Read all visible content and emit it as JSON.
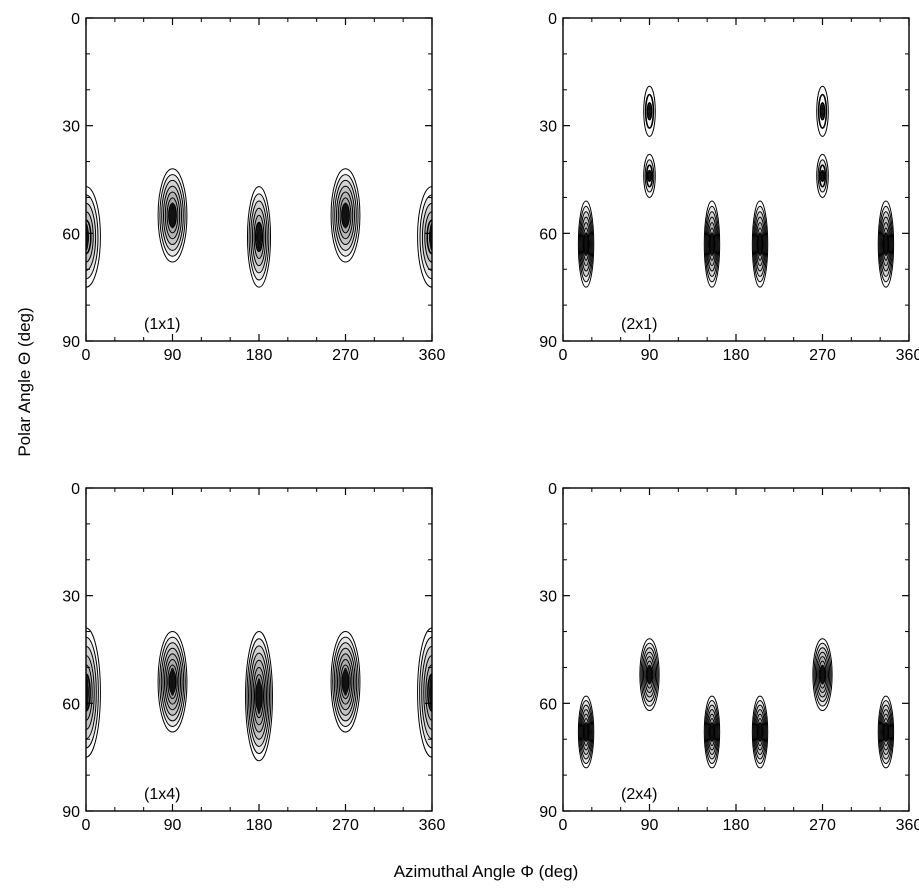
{
  "figure": {
    "ylabel": "Polar Angle Θ (deg)",
    "xlabel": "Azimuthal Angle Φ (deg)"
  },
  "chart_data": [
    {
      "type": "heatmap",
      "panel_label": "(1x1)",
      "xlim": [
        0,
        360
      ],
      "ylim": [
        0,
        90
      ],
      "y_inverted": true,
      "x_ticks": [
        0,
        90,
        180,
        270,
        360
      ],
      "y_ticks": [
        0,
        30,
        60,
        90
      ],
      "peaks": [
        {
          "phi": 0,
          "theta": 61,
          "rx": 15,
          "rth": 14,
          "levels": 6
        },
        {
          "phi": 90,
          "theta": 55,
          "rx": 15,
          "rth": 13,
          "levels": 8
        },
        {
          "phi": 180,
          "theta": 61,
          "rx": 12,
          "rth": 14,
          "levels": 7
        },
        {
          "phi": 270,
          "theta": 55,
          "rx": 15,
          "rth": 13,
          "levels": 8
        },
        {
          "phi": 360,
          "theta": 61,
          "rx": 15,
          "rth": 14,
          "levels": 6
        }
      ]
    },
    {
      "type": "heatmap",
      "panel_label": "(2x1)",
      "xlim": [
        0,
        360
      ],
      "ylim": [
        0,
        90
      ],
      "y_inverted": true,
      "x_ticks": [
        0,
        90,
        180,
        270,
        360
      ],
      "y_ticks": [
        0,
        30,
        60,
        90
      ],
      "peaks": [
        {
          "phi": 24,
          "theta": 63,
          "rx": 8,
          "rth": 12,
          "levels": 8
        },
        {
          "phi": 155,
          "theta": 63,
          "rx": 8,
          "rth": 12,
          "levels": 8
        },
        {
          "phi": 205,
          "theta": 63,
          "rx": 8,
          "rth": 12,
          "levels": 8
        },
        {
          "phi": 336,
          "theta": 63,
          "rx": 8,
          "rth": 12,
          "levels": 8
        },
        {
          "phi": 90,
          "theta": 44,
          "rx": 6,
          "rth": 6,
          "levels": 4
        },
        {
          "phi": 270,
          "theta": 44,
          "rx": 6,
          "rth": 6,
          "levels": 4
        },
        {
          "phi": 90,
          "theta": 26,
          "rx": 6,
          "rth": 7,
          "levels": 3
        },
        {
          "phi": 270,
          "theta": 26,
          "rx": 6,
          "rth": 7,
          "levels": 3
        }
      ]
    },
    {
      "type": "heatmap",
      "panel_label": "(1x4)",
      "xlim": [
        0,
        360
      ],
      "ylim": [
        0,
        90
      ],
      "y_inverted": true,
      "x_ticks": [
        0,
        90,
        180,
        270,
        360
      ],
      "y_ticks": [
        0,
        30,
        60,
        90
      ],
      "peaks": [
        {
          "phi": 0,
          "theta": 57,
          "rx": 15,
          "rth": 18,
          "levels": 7
        },
        {
          "phi": 90,
          "theta": 54,
          "rx": 15,
          "rth": 14,
          "levels": 9
        },
        {
          "phi": 180,
          "theta": 58,
          "rx": 14,
          "rth": 18,
          "levels": 9
        },
        {
          "phi": 270,
          "theta": 54,
          "rx": 15,
          "rth": 14,
          "levels": 9
        },
        {
          "phi": 360,
          "theta": 57,
          "rx": 15,
          "rth": 18,
          "levels": 7
        }
      ]
    },
    {
      "type": "heatmap",
      "panel_label": "(2x4)",
      "xlim": [
        0,
        360
      ],
      "ylim": [
        0,
        90
      ],
      "y_inverted": true,
      "x_ticks": [
        0,
        90,
        180,
        270,
        360
      ],
      "y_ticks": [
        0,
        30,
        60,
        90
      ],
      "peaks": [
        {
          "phi": 24,
          "theta": 68,
          "rx": 8,
          "rth": 10,
          "levels": 8
        },
        {
          "phi": 155,
          "theta": 68,
          "rx": 8,
          "rth": 10,
          "levels": 8
        },
        {
          "phi": 205,
          "theta": 68,
          "rx": 8,
          "rth": 10,
          "levels": 8
        },
        {
          "phi": 336,
          "theta": 68,
          "rx": 8,
          "rth": 10,
          "levels": 8
        },
        {
          "phi": 90,
          "theta": 52,
          "rx": 10,
          "rth": 10,
          "levels": 8
        },
        {
          "phi": 270,
          "theta": 52,
          "rx": 10,
          "rth": 10,
          "levels": 8
        }
      ]
    }
  ]
}
